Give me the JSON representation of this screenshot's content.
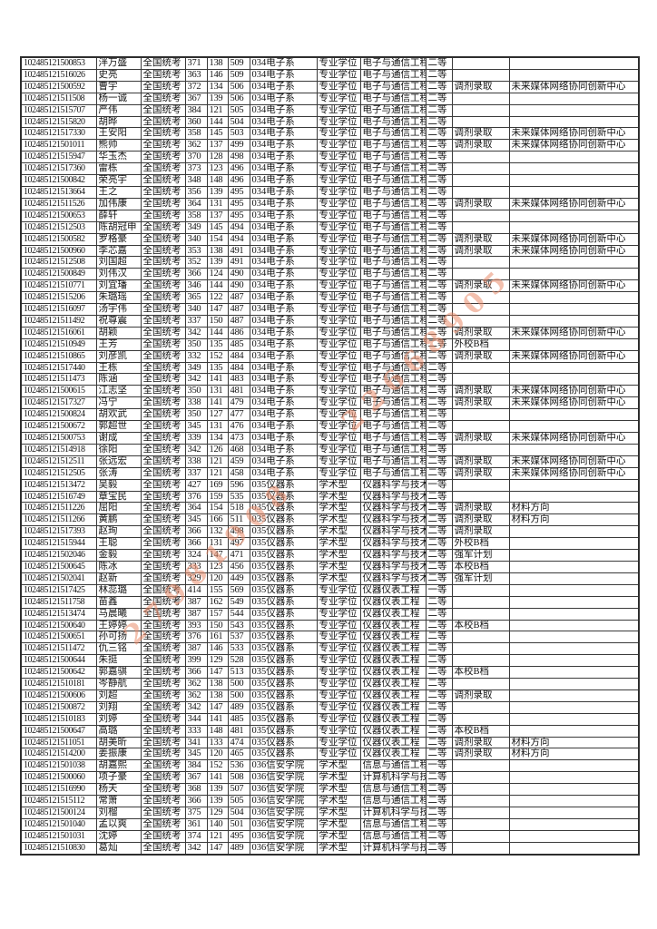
{
  "page": {
    "background_color": "#ffffff",
    "table_border_color": "#2e2e2e",
    "watermark_color": "#e98c6c"
  },
  "watermark": {
    "runs": [
      {
        "text": "27981908"
      },
      {
        "text": "22668905"
      }
    ]
  },
  "table": {
    "column_keys": [
      "candidate-id",
      "name",
      "exam-type",
      "score-1",
      "score-2",
      "total-score",
      "department",
      "degree-type",
      "major",
      "scholarship-grade",
      "note",
      "remark"
    ],
    "rows": [
      [
        "102485121500853",
        "泮万盛",
        "全国统考",
        "371",
        "138",
        "509",
        "034电子系",
        "专业学位",
        "电子与通信工程",
        "二等",
        "",
        ""
      ],
      [
        "102485121516026",
        "史亮",
        "全国统考",
        "363",
        "146",
        "509",
        "034电子系",
        "专业学位",
        "电子与通信工程",
        "二等",
        "",
        ""
      ],
      [
        "102485121500592",
        "曹宇",
        "全国统考",
        "372",
        "134",
        "506",
        "034电子系",
        "专业学位",
        "电子与通信工程",
        "二等",
        "调剂录取",
        "未来媒体网络协同创新中心"
      ],
      [
        "102485121511508",
        "杨一诚",
        "全国统考",
        "367",
        "139",
        "506",
        "034电子系",
        "专业学位",
        "电子与通信工程",
        "二等",
        "",
        ""
      ],
      [
        "102485121515707",
        "严伟",
        "全国统考",
        "384",
        "121",
        "505",
        "034电子系",
        "专业学位",
        "电子与通信工程",
        "二等",
        "",
        ""
      ],
      [
        "102485121515820",
        "胡晔",
        "全国统考",
        "360",
        "144",
        "504",
        "034电子系",
        "专业学位",
        "电子与通信工程",
        "二等",
        "",
        ""
      ],
      [
        "102485121517330",
        "王安阳",
        "全国统考",
        "358",
        "145",
        "503",
        "034电子系",
        "专业学位",
        "电子与通信工程",
        "二等",
        "调剂录取",
        "未来媒体网络协同创新中心"
      ],
      [
        "102485121501011",
        "熊帅",
        "全国统考",
        "362",
        "137",
        "499",
        "034电子系",
        "专业学位",
        "电子与通信工程",
        "二等",
        "调剂录取",
        "未来媒体网络协同创新中心"
      ],
      [
        "102485121515947",
        "华玉杰",
        "全国统考",
        "370",
        "128",
        "498",
        "034电子系",
        "专业学位",
        "电子与通信工程",
        "二等",
        "",
        ""
      ],
      [
        "102485121517360",
        "雷栋",
        "全国统考",
        "373",
        "123",
        "496",
        "034电子系",
        "专业学位",
        "电子与通信工程",
        "二等",
        "",
        ""
      ],
      [
        "102485121500842",
        "荣亮宇",
        "全国统考",
        "348",
        "148",
        "496",
        "034电子系",
        "专业学位",
        "电子与通信工程",
        "二等",
        "",
        ""
      ],
      [
        "102485121513664",
        "王之",
        "全国统考",
        "356",
        "139",
        "495",
        "034电子系",
        "专业学位",
        "电子与通信工程",
        "二等",
        "",
        ""
      ],
      [
        "102485121511526",
        "加伟康",
        "全国统考",
        "364",
        "131",
        "495",
        "034电子系",
        "专业学位",
        "电子与通信工程",
        "二等",
        "调剂录取",
        "未来媒体网络协同创新中心"
      ],
      [
        "102485121500653",
        "薛轩",
        "全国统考",
        "358",
        "137",
        "495",
        "034电子系",
        "专业学位",
        "电子与通信工程",
        "二等",
        "",
        ""
      ],
      [
        "102485121512503",
        "陈胡冠申",
        "全国统考",
        "349",
        "145",
        "494",
        "034电子系",
        "专业学位",
        "电子与通信工程",
        "二等",
        "",
        ""
      ],
      [
        "102485121500582",
        "罗格豪",
        "全国统考",
        "340",
        "154",
        "494",
        "034电子系",
        "专业学位",
        "电子与通信工程",
        "二等",
        "调剂录取",
        "未来媒体网络协同创新中心"
      ],
      [
        "102485121500960",
        "李芯嘉",
        "全国统考",
        "353",
        "138",
        "491",
        "034电子系",
        "专业学位",
        "电子与通信工程",
        "二等",
        "调剂录取",
        "未来媒体网络协同创新中心"
      ],
      [
        "102485121512508",
        "刘国超",
        "全国统考",
        "352",
        "139",
        "491",
        "034电子系",
        "专业学位",
        "电子与通信工程",
        "二等",
        "",
        ""
      ],
      [
        "102485121500849",
        "刘伟汉",
        "全国统考",
        "366",
        "124",
        "490",
        "034电子系",
        "专业学位",
        "电子与通信工程",
        "二等",
        "",
        ""
      ],
      [
        "102485121510771",
        "刘宜璠",
        "全国统考",
        "346",
        "144",
        "490",
        "034电子系",
        "专业学位",
        "电子与通信工程",
        "二等",
        "调剂录取",
        "未来媒体网络协同创新中心"
      ],
      [
        "102485121515206",
        "朱璐瑶",
        "全国统考",
        "365",
        "122",
        "487",
        "034电子系",
        "专业学位",
        "电子与通信工程",
        "二等",
        "",
        ""
      ],
      [
        "102485121516097",
        "汤宇伟",
        "全国统考",
        "340",
        "147",
        "487",
        "034电子系",
        "专业学位",
        "电子与通信工程",
        "二等",
        "",
        ""
      ],
      [
        "102485121511492",
        "祝尊震",
        "全国统考",
        "337",
        "150",
        "487",
        "034电子系",
        "专业学位",
        "电子与通信工程",
        "二等",
        "",
        ""
      ],
      [
        "102485121516061",
        "胡颖",
        "全国统考",
        "342",
        "144",
        "486",
        "034电子系",
        "专业学位",
        "电子与通信工程",
        "二等",
        "调剂录取",
        "未来媒体网络协同创新中心"
      ],
      [
        "102485121510949",
        "王芳",
        "全国统考",
        "350",
        "135",
        "485",
        "034电子系",
        "专业学位",
        "电子与通信工程",
        "二等",
        "外校B档",
        ""
      ],
      [
        "102485121510865",
        "刘彦凯",
        "全国统考",
        "332",
        "152",
        "484",
        "034电子系",
        "专业学位",
        "电子与通信工程",
        "二等",
        "调剂录取",
        "未来媒体网络协同创新中心"
      ],
      [
        "102485121517440",
        "王栋",
        "全国统考",
        "349",
        "135",
        "484",
        "034电子系",
        "专业学位",
        "电子与通信工程",
        "二等",
        "",
        ""
      ],
      [
        "102485121511473",
        "陈涵",
        "全国统考",
        "342",
        "141",
        "483",
        "034电子系",
        "专业学位",
        "电子与通信工程",
        "二等",
        "",
        ""
      ],
      [
        "102485121500615",
        "江志坚",
        "全国统考",
        "350",
        "131",
        "481",
        "034电子系",
        "专业学位",
        "电子与通信工程",
        "二等",
        "调剂录取",
        "未来媒体网络协同创新中心"
      ],
      [
        "102485121517327",
        "冯宁",
        "全国统考",
        "338",
        "141",
        "479",
        "034电子系",
        "专业学位",
        "电子与通信工程",
        "二等",
        "调剂录取",
        "未来媒体网络协同创新中心"
      ],
      [
        "102485121500824",
        "胡欢武",
        "全国统考",
        "350",
        "127",
        "477",
        "034电子系",
        "专业学位",
        "电子与通信工程",
        "二等",
        "",
        ""
      ],
      [
        "102485121500672",
        "郭超世",
        "全国统考",
        "345",
        "131",
        "476",
        "034电子系",
        "专业学位",
        "电子与通信工程",
        "二等",
        "",
        ""
      ],
      [
        "102485121500753",
        "谢成",
        "全国统考",
        "339",
        "134",
        "473",
        "034电子系",
        "专业学位",
        "电子与通信工程",
        "二等",
        "调剂录取",
        "未来媒体网络协同创新中心"
      ],
      [
        "102485121514918",
        "徐阳",
        "全国统考",
        "342",
        "126",
        "468",
        "034电子系",
        "专业学位",
        "电子与通信工程",
        "二等",
        "",
        ""
      ],
      [
        "102485121512511",
        "张远宏",
        "全国统考",
        "338",
        "121",
        "459",
        "034电子系",
        "专业学位",
        "电子与通信工程",
        "二等",
        "调剂录取",
        "未来媒体网络协同创新中心"
      ],
      [
        "102485121512505",
        "张涛",
        "全国统考",
        "337",
        "121",
        "458",
        "034电子系",
        "专业学位",
        "电子与通信工程",
        "二等",
        "调剂录取",
        "未来媒体网络协同创新中心"
      ],
      [
        "102485121513472",
        "吴毅",
        "全国统考",
        "427",
        "169",
        "596",
        "035仪器系",
        "学术型",
        "仪器科学与技术",
        "一等",
        "",
        ""
      ],
      [
        "102485121516749",
        "章宝民",
        "全国统考",
        "376",
        "159",
        "535",
        "035仪器系",
        "学术型",
        "仪器科学与技术",
        "二等",
        "",
        ""
      ],
      [
        "102485121511226",
        "屈阳",
        "全国统考",
        "364",
        "154",
        "518",
        "035仪器系",
        "学术型",
        "仪器科学与技术",
        "二等",
        "调剂录取",
        "材料方向"
      ],
      [
        "102485121511266",
        "黄鹏",
        "全国统考",
        "345",
        "166",
        "511",
        "035仪器系",
        "学术型",
        "仪器科学与技术",
        "二等",
        "调剂录取",
        "材料方向"
      ],
      [
        "102485121517393",
        "赵珣",
        "全国统考",
        "366",
        "132",
        "498",
        "035仪器系",
        "学术型",
        "仪器科学与技术",
        "二等",
        "调剂录取",
        ""
      ],
      [
        "102485121515944",
        "王聪",
        "全国统考",
        "366",
        "131",
        "497",
        "035仪器系",
        "学术型",
        "仪器科学与技术",
        "二等",
        "外校B档",
        ""
      ],
      [
        "102485121502046",
        "金毅",
        "全国统考",
        "324",
        "147",
        "471",
        "035仪器系",
        "学术型",
        "仪器科学与技术",
        "二等",
        "强军计划",
        ""
      ],
      [
        "102485121500645",
        "陈冰",
        "全国统考",
        "333",
        "123",
        "456",
        "035仪器系",
        "学术型",
        "仪器科学与技术",
        "二等",
        "本校B档",
        ""
      ],
      [
        "102485121502041",
        "赵新",
        "全国统考",
        "329",
        "120",
        "449",
        "035仪器系",
        "学术型",
        "仪器科学与技术",
        "二等",
        "强军计划",
        ""
      ],
      [
        "102485121517425",
        "林蕊璐",
        "全国统考",
        "414",
        "155",
        "569",
        "035仪器系",
        "专业学位",
        "仪器仪表工程",
        "一等",
        "",
        ""
      ],
      [
        "102485121511758",
        "苗鑫",
        "全国统考",
        "387",
        "162",
        "549",
        "035仪器系",
        "专业学位",
        "仪器仪表工程",
        "二等",
        "",
        ""
      ],
      [
        "102485121513474",
        "马晨曦",
        "全国统考",
        "387",
        "157",
        "544",
        "035仪器系",
        "专业学位",
        "仪器仪表工程",
        "二等",
        "",
        ""
      ],
      [
        "102485121500640",
        "王婷婷",
        "全国统考",
        "393",
        "150",
        "543",
        "035仪器系",
        "专业学位",
        "仪器仪表工程",
        "二等",
        "本校B档",
        ""
      ],
      [
        "102485121500651",
        "孙可扬",
        "全国统考",
        "376",
        "161",
        "537",
        "035仪器系",
        "专业学位",
        "仪器仪表工程",
        "二等",
        "",
        ""
      ],
      [
        "102485121511472",
        "仇三铭",
        "全国统考",
        "387",
        "146",
        "533",
        "035仪器系",
        "专业学位",
        "仪器仪表工程",
        "二等",
        "",
        ""
      ],
      [
        "102485121500644",
        "朱挺",
        "全国统考",
        "399",
        "129",
        "528",
        "035仪器系",
        "专业学位",
        "仪器仪表工程",
        "二等",
        "",
        ""
      ],
      [
        "102485121500642",
        "郭嘉骐",
        "全国统考",
        "366",
        "147",
        "513",
        "035仪器系",
        "专业学位",
        "仪器仪表工程",
        "二等",
        "本校B档",
        ""
      ],
      [
        "102485121510181",
        "岑静航",
        "全国统考",
        "362",
        "138",
        "500",
        "035仪器系",
        "专业学位",
        "仪器仪表工程",
        "二等",
        "",
        ""
      ],
      [
        "102485121500606",
        "刘超",
        "全国统考",
        "362",
        "138",
        "500",
        "035仪器系",
        "专业学位",
        "仪器仪表工程",
        "二等",
        "调剂录取",
        ""
      ],
      [
        "102485121500872",
        "刘翔",
        "全国统考",
        "342",
        "147",
        "489",
        "035仪器系",
        "专业学位",
        "仪器仪表工程",
        "二等",
        "",
        ""
      ],
      [
        "102485121510183",
        "刘婷",
        "全国统考",
        "344",
        "141",
        "485",
        "035仪器系",
        "专业学位",
        "仪器仪表工程",
        "二等",
        "",
        ""
      ],
      [
        "102485121500647",
        "高璐",
        "全国统考",
        "333",
        "148",
        "481",
        "035仪器系",
        "专业学位",
        "仪器仪表工程",
        "二等",
        "本校B档",
        ""
      ],
      [
        "102485121511051",
        "胡美昕",
        "全国统考",
        "341",
        "133",
        "474",
        "035仪器系",
        "专业学位",
        "仪器仪表工程",
        "二等",
        "调剂录取",
        "材料方向"
      ],
      [
        "102485121514200",
        "姜振康",
        "全国统考",
        "345",
        "120",
        "465",
        "035仪器系",
        "专业学位",
        "仪器仪表工程",
        "二等",
        "调剂录取",
        "材料方向"
      ],
      [
        "102485121501038",
        "胡嘉熙",
        "全国统考",
        "384",
        "152",
        "536",
        "036信安学院",
        "学术型",
        "信息与通信工程",
        "一等",
        "",
        ""
      ],
      [
        "102485121500060",
        "项子豪",
        "全国统考",
        "367",
        "141",
        "508",
        "036信安学院",
        "学术型",
        "计算机科学与技术",
        "二等",
        "",
        ""
      ],
      [
        "102485121516990",
        "杨天",
        "全国统考",
        "368",
        "139",
        "507",
        "036信安学院",
        "学术型",
        "信息与通信工程",
        "二等",
        "",
        ""
      ],
      [
        "102485121515112",
        "常箫",
        "全国统考",
        "366",
        "139",
        "505",
        "036信安学院",
        "学术型",
        "信息与通信工程",
        "二等",
        "",
        ""
      ],
      [
        "102485121500124",
        "刘榴",
        "全国统考",
        "375",
        "129",
        "504",
        "036信安学院",
        "学术型",
        "计算机科学与技术",
        "二等",
        "",
        ""
      ],
      [
        "102485121501040",
        "孟以爽",
        "全国统考",
        "361",
        "140",
        "501",
        "036信安学院",
        "学术型",
        "信息与通信工程",
        "二等",
        "",
        ""
      ],
      [
        "102485121501031",
        "沈婷",
        "全国统考",
        "374",
        "121",
        "495",
        "036信安学院",
        "学术型",
        "信息与通信工程",
        "二等",
        "",
        ""
      ],
      [
        "102485121510830",
        "葛灿",
        "全国统考",
        "342",
        "147",
        "489",
        "036信安学院",
        "学术型",
        "计算机科学与技术",
        "二等",
        "",
        ""
      ]
    ]
  }
}
